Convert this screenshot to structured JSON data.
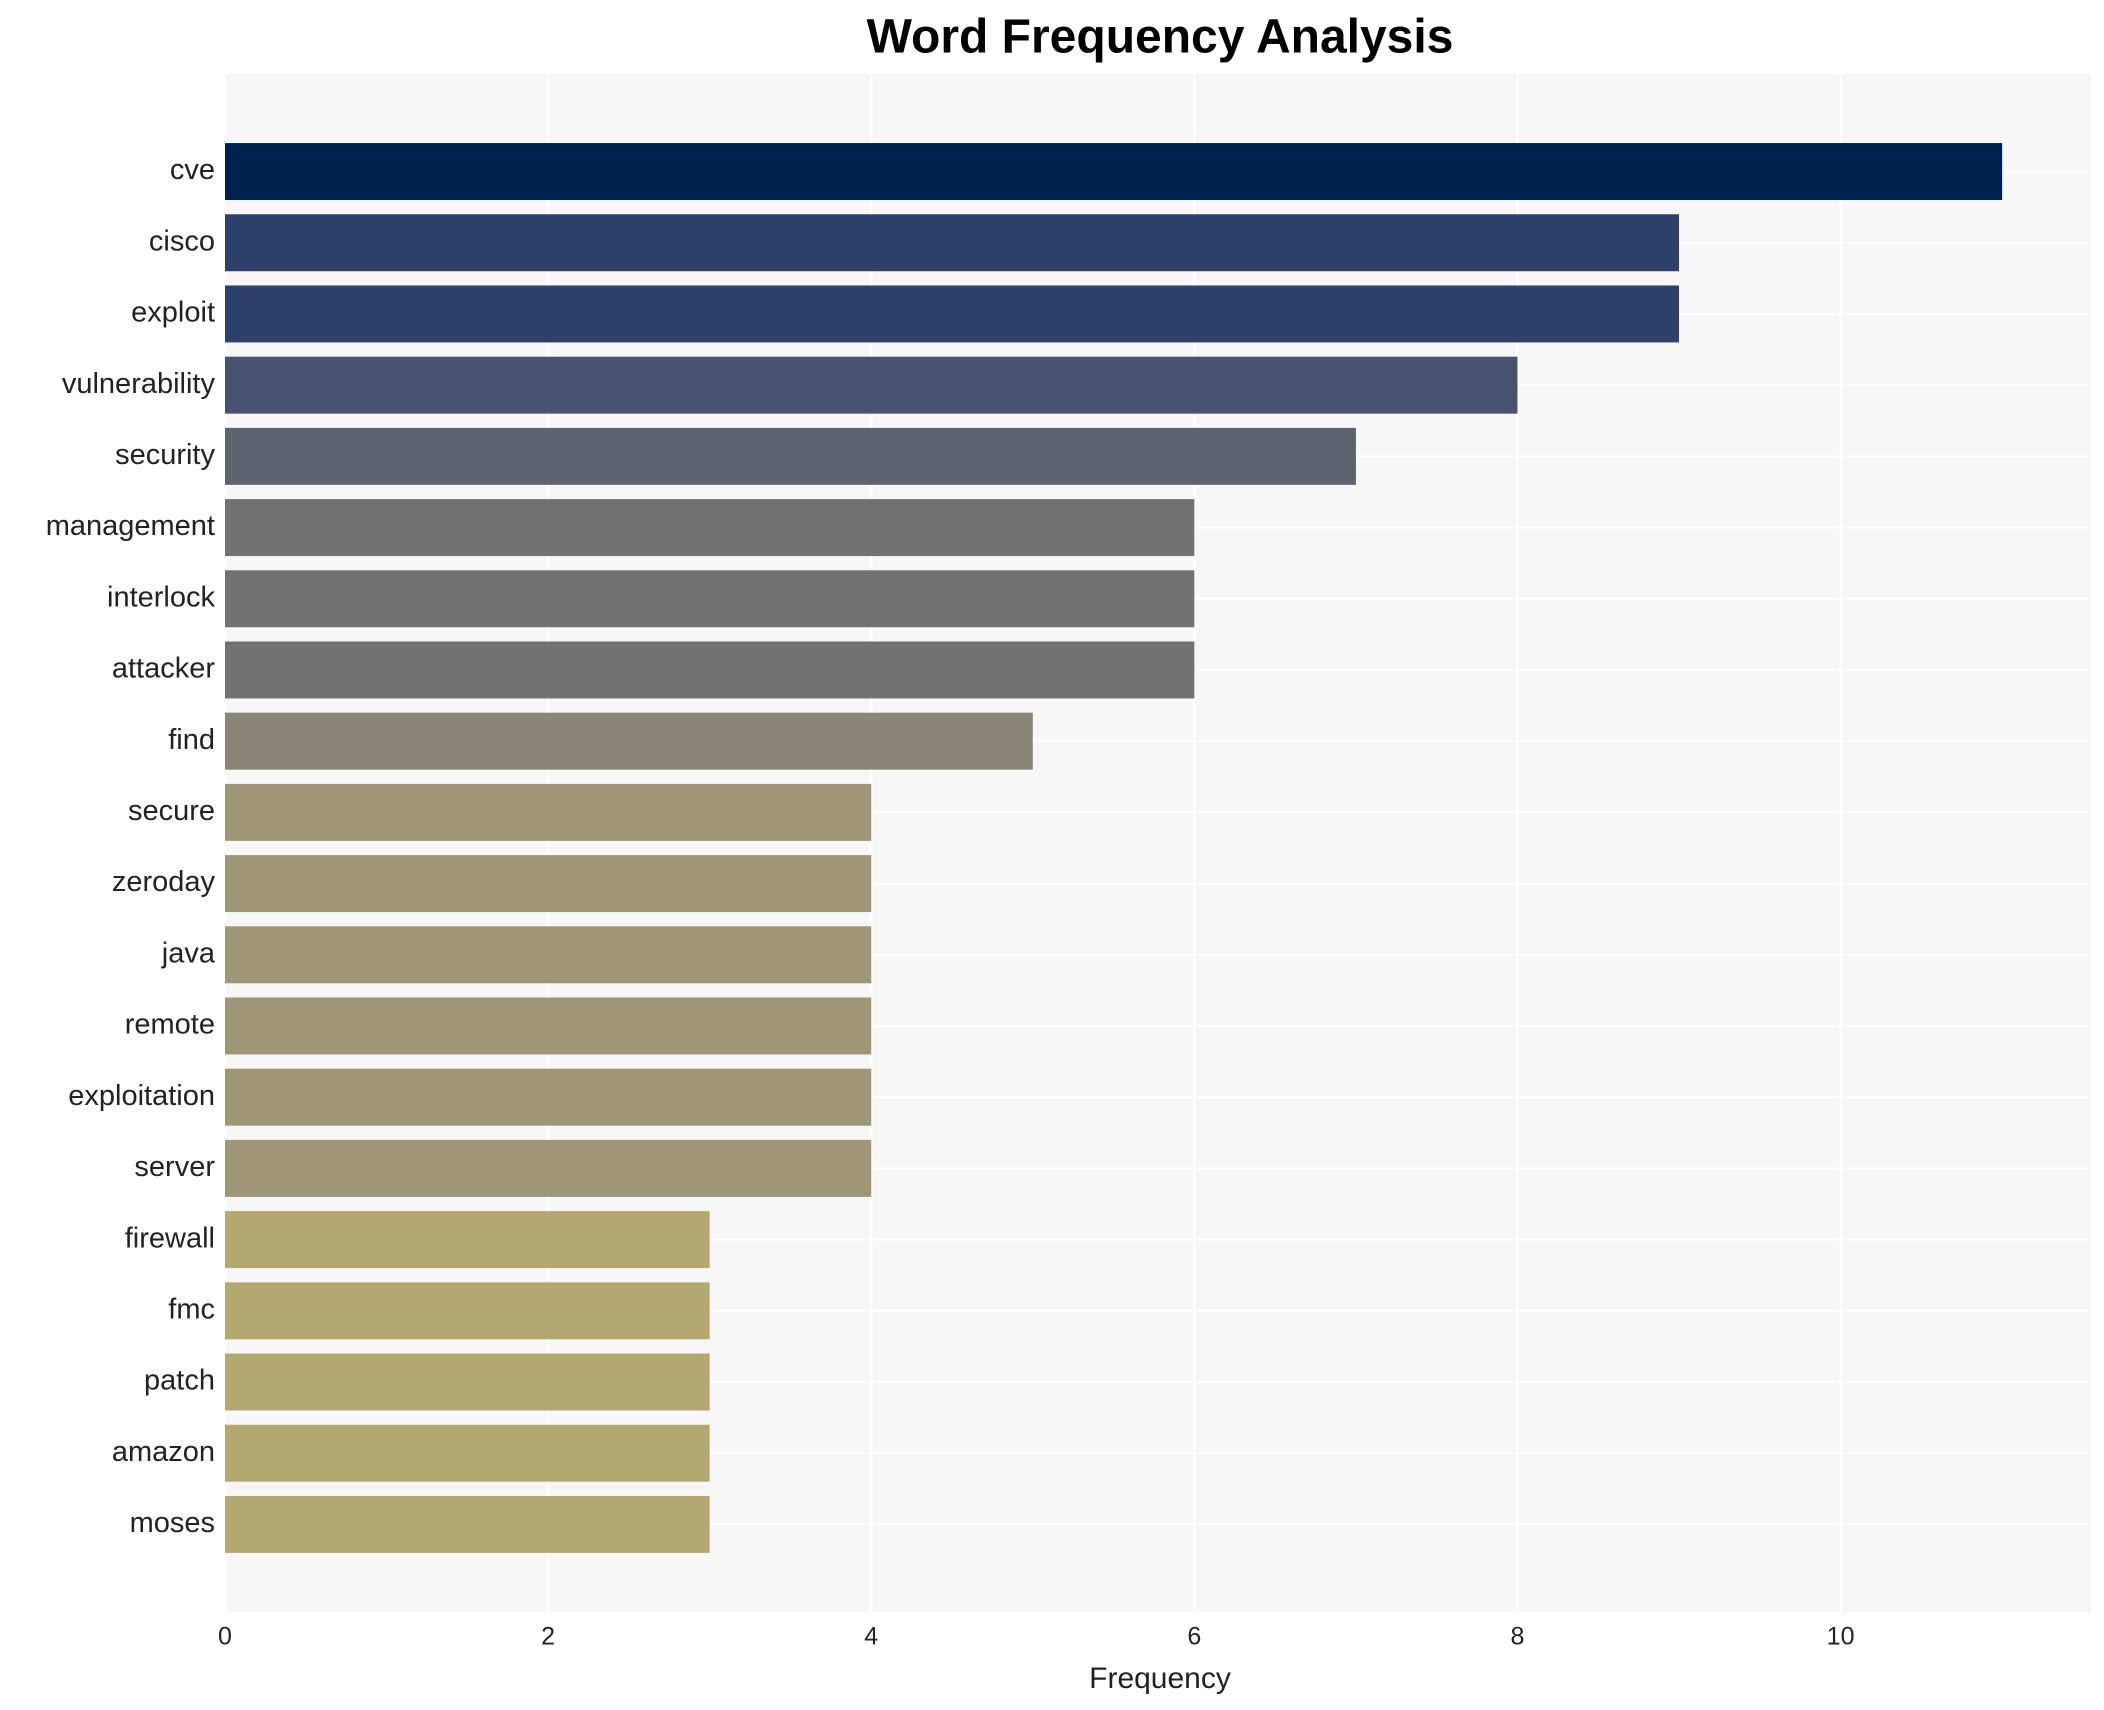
{
  "chart_data": {
    "type": "barh",
    "title": "Word Frequency Analysis",
    "xlabel": "Frequency",
    "categories": [
      "cve",
      "cisco",
      "exploit",
      "vulnerability",
      "security",
      "management",
      "interlock",
      "attacker",
      "find",
      "secure",
      "zeroday",
      "java",
      "remote",
      "exploitation",
      "server",
      "firewall",
      "fmc",
      "patch",
      "amazon",
      "moses"
    ],
    "values": [
      11,
      9,
      9,
      8,
      7,
      6,
      6,
      6,
      5,
      4,
      4,
      4,
      4,
      4,
      4,
      3,
      3,
      3,
      3,
      3
    ],
    "colors": [
      "#00224e",
      "#2e416b",
      "#2e416b",
      "#48526e",
      "#5f636f",
      "#727272",
      "#727272",
      "#727272",
      "#898678",
      "#9e9676",
      "#9e9676",
      "#9e9676",
      "#9e9676",
      "#9e9676",
      "#9e9676",
      "#b3a870",
      "#b3a870",
      "#b3a870",
      "#b3a870",
      "#b3a870"
    ],
    "xlim": [
      0,
      11.55
    ],
    "xticks": [
      0,
      2,
      4,
      6,
      8,
      10
    ],
    "grid": true
  }
}
